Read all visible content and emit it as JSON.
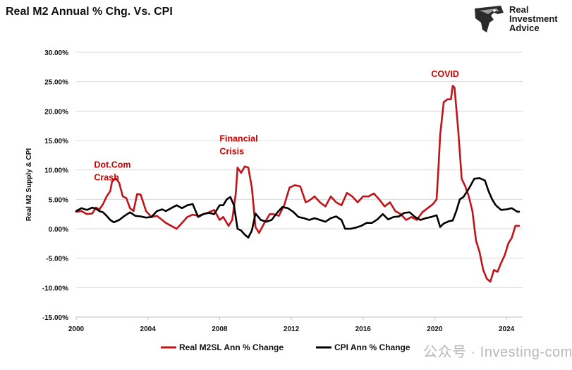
{
  "title": "Real M2 Annual % Chg. Vs. CPI",
  "logo": {
    "text": "Real Investment Advice",
    "line1": "Real",
    "line2": "Investment",
    "line3": "Advice",
    "icon": "eagle-head-icon"
  },
  "watermark": "公众号 · Investing-com",
  "colors": {
    "m2": "#c0141a",
    "cpi": "#000000",
    "annotation": "#cc0000",
    "grid": "#d9d9d9"
  },
  "chart_data": {
    "type": "line",
    "title": "Real M2 Annual % Chg. Vs. CPI",
    "ylabel": "Real M2 Supply & CPI",
    "xlabel": "",
    "xlim": [
      2000,
      2024.9
    ],
    "ylim": [
      -15,
      30
    ],
    "x_ticks": [
      "2000",
      "2004",
      "2008",
      "2012",
      "2016",
      "2020",
      "2024"
    ],
    "y_ticks": [
      "-15.00%",
      "-10.00%",
      "-5.00%",
      "0.00%",
      "5.00%",
      "10.00%",
      "15.00%",
      "20.00%",
      "25.00%",
      "30.00%"
    ],
    "grid": "horizontal",
    "legend": "bottom",
    "annotations": [
      {
        "lines": [
          "Dot.Com",
          "Crash"
        ],
        "x": 2001.0,
        "y": 10.4
      },
      {
        "lines": [
          "Financial",
          "Crisis"
        ],
        "x": 2008.0,
        "y": 14.8
      },
      {
        "lines": [
          "COVID"
        ],
        "x": 2019.8,
        "y": 25.8
      }
    ],
    "series": [
      {
        "name": "Real M2SL Ann % Change",
        "x": [
          2000.0,
          2000.3,
          2000.6,
          2000.9,
          2001.1,
          2001.3,
          2001.5,
          2001.7,
          2001.9,
          2002.0,
          2002.2,
          2002.4,
          2002.6,
          2002.8,
          2003.0,
          2003.2,
          2003.4,
          2003.6,
          2003.9,
          2004.2,
          2004.5,
          2004.8,
          2005.0,
          2005.3,
          2005.6,
          2005.9,
          2006.2,
          2006.5,
          2006.8,
          2007.1,
          2007.4,
          2007.7,
          2008.0,
          2008.2,
          2008.5,
          2008.7,
          2008.9,
          2009.0,
          2009.2,
          2009.4,
          2009.6,
          2009.8,
          2010.0,
          2010.2,
          2010.5,
          2010.8,
          2011.0,
          2011.3,
          2011.6,
          2011.9,
          2012.2,
          2012.5,
          2012.8,
          2013.0,
          2013.3,
          2013.6,
          2013.9,
          2014.2,
          2014.5,
          2014.8,
          2015.1,
          2015.4,
          2015.7,
          2016.0,
          2016.3,
          2016.6,
          2016.9,
          2017.2,
          2017.5,
          2017.8,
          2018.1,
          2018.4,
          2018.7,
          2019.0,
          2019.3,
          2019.6,
          2019.9,
          2020.1,
          2020.2,
          2020.3,
          2020.5,
          2020.7,
          2020.9,
          2021.0,
          2021.1,
          2021.3,
          2021.5,
          2021.7,
          2021.9,
          2022.1,
          2022.3,
          2022.5,
          2022.7,
          2022.9,
          2023.1,
          2023.3,
          2023.5,
          2023.7,
          2023.9,
          2024.1,
          2024.3,
          2024.5,
          2024.7
        ],
        "values": [
          2.9,
          3.0,
          2.5,
          2.6,
          3.6,
          3.3,
          4.2,
          5.5,
          6.4,
          8.0,
          8.6,
          7.8,
          5.5,
          5.2,
          3.5,
          3.0,
          5.9,
          5.8,
          3.0,
          2.0,
          2.2,
          1.5,
          1.0,
          0.5,
          0.0,
          1.0,
          2.0,
          2.4,
          2.2,
          2.5,
          2.8,
          3.2,
          1.5,
          2.0,
          0.5,
          1.5,
          6.0,
          10.4,
          9.5,
          10.6,
          10.4,
          7.0,
          0.3,
          -0.7,
          1.0,
          2.5,
          2.5,
          2.2,
          4.0,
          7.0,
          7.4,
          7.2,
          4.5,
          4.8,
          5.5,
          4.5,
          3.8,
          5.5,
          4.5,
          4.0,
          6.1,
          5.5,
          4.5,
          5.5,
          5.5,
          6.0,
          5.0,
          3.8,
          4.5,
          3.0,
          2.5,
          1.5,
          2.0,
          1.5,
          2.8,
          3.5,
          4.2,
          5.0,
          10.0,
          16.0,
          21.5,
          22.0,
          22.0,
          24.3,
          24.0,
          17.0,
          8.5,
          7.2,
          5.5,
          3.0,
          -2.0,
          -4.0,
          -7.0,
          -8.5,
          -9.0,
          -7.0,
          -7.3,
          -5.8,
          -4.5,
          -2.5,
          -1.5,
          0.5,
          0.5
        ]
      },
      {
        "name": "CPI Ann % Change",
        "x": [
          2000.0,
          2000.3,
          2000.6,
          2000.9,
          2001.1,
          2001.3,
          2001.5,
          2001.7,
          2001.9,
          2002.1,
          2002.4,
          2002.7,
          2003.0,
          2003.3,
          2003.6,
          2003.9,
          2004.2,
          2004.5,
          2004.8,
          2005.0,
          2005.3,
          2005.6,
          2005.9,
          2006.2,
          2006.5,
          2006.8,
          2007.1,
          2007.4,
          2007.7,
          2008.0,
          2008.2,
          2008.4,
          2008.6,
          2008.8,
          2009.0,
          2009.2,
          2009.4,
          2009.6,
          2009.8,
          2010.0,
          2010.3,
          2010.6,
          2010.9,
          2011.2,
          2011.5,
          2011.8,
          2012.1,
          2012.4,
          2012.7,
          2013.0,
          2013.3,
          2013.6,
          2013.9,
          2014.2,
          2014.5,
          2014.8,
          2015.0,
          2015.3,
          2015.6,
          2015.9,
          2016.2,
          2016.5,
          2016.8,
          2017.1,
          2017.4,
          2017.7,
          2018.0,
          2018.3,
          2018.6,
          2018.9,
          2019.2,
          2019.5,
          2019.8,
          2020.1,
          2020.3,
          2020.5,
          2020.8,
          2021.0,
          2021.2,
          2021.4,
          2021.6,
          2021.9,
          2022.2,
          2022.5,
          2022.8,
          2023.0,
          2023.2,
          2023.4,
          2023.7,
          2024.0,
          2024.3,
          2024.6,
          2024.7
        ],
        "values": [
          3.0,
          3.5,
          3.2,
          3.6,
          3.4,
          3.0,
          2.8,
          2.2,
          1.5,
          1.1,
          1.5,
          2.2,
          2.8,
          2.2,
          2.1,
          1.9,
          2.0,
          3.0,
          3.3,
          3.0,
          3.5,
          4.0,
          3.5,
          4.0,
          4.2,
          2.0,
          2.5,
          2.7,
          2.5,
          4.0,
          4.0,
          5.0,
          5.4,
          4.0,
          0.0,
          -0.3,
          -1.0,
          -1.5,
          -0.3,
          2.6,
          1.5,
          1.2,
          1.5,
          2.7,
          3.7,
          3.5,
          2.9,
          2.0,
          1.8,
          1.5,
          1.8,
          1.5,
          1.2,
          1.8,
          2.1,
          1.5,
          0.0,
          0.0,
          0.2,
          0.5,
          1.0,
          1.0,
          1.6,
          2.5,
          1.6,
          2.0,
          2.1,
          2.7,
          2.8,
          2.0,
          1.5,
          1.8,
          2.0,
          2.3,
          0.3,
          0.9,
          1.3,
          1.4,
          3.0,
          5.0,
          5.4,
          6.8,
          8.5,
          8.6,
          8.2,
          6.4,
          5.0,
          4.0,
          3.2,
          3.3,
          3.5,
          2.9,
          2.9
        ]
      }
    ]
  }
}
